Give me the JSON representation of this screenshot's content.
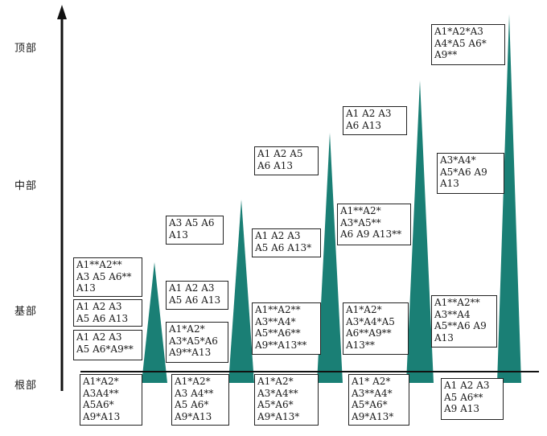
{
  "axis": {
    "levels": [
      "顶部",
      "中部",
      "基部",
      "根部"
    ]
  },
  "colors": {
    "peak": "#1a7f75",
    "axis": "#111111",
    "box_border": "#222222"
  },
  "columns": [
    {
      "boxes": [
        [
          "A1**A2**",
          "A3 A5 A6**",
          "A13"
        ],
        [
          "A1 A2 A3",
          "A5 A6 A13"
        ],
        [
          "A1 A2 A3",
          "A5 A6*A9**"
        ],
        [
          "A1*A2*",
          "A3A4**",
          "A5A6*",
          "A9*A13"
        ]
      ]
    },
    {
      "boxes": [
        [
          "A3 A5 A6",
          "A13"
        ],
        [
          "A1 A2 A3",
          "A5 A6 A13"
        ],
        [
          "A1*A2*",
          "A3*A5*A6",
          "A9**A13"
        ],
        [
          "A1*A2*",
          "A3 A4**",
          "A5 A6*",
          "A9*A13"
        ]
      ]
    },
    {
      "boxes": [
        [
          "A1 A2 A5",
          "A6 A13"
        ],
        [
          "A1 A2 A3",
          "A5 A6 A13*"
        ],
        [
          "A1**A2**",
          "A3**A4*",
          "A5**A6**",
          "A9**A13**"
        ],
        [
          "A1*A2*",
          "A3*A4**",
          "A5*A6*",
          "A9*A13*"
        ]
      ]
    },
    {
      "boxes": [
        [
          "A1 A2 A3",
          "A6 A13"
        ],
        [
          "A1**A2*",
          "A3*A5**",
          "A6 A9 A13**"
        ],
        [
          "A1*A2*",
          "A3*A4*A5",
          "A6**A9**",
          "A13**"
        ],
        [
          "A1* A2*",
          "A3**A4*",
          "A5*A6*",
          "A9*A13*"
        ]
      ]
    },
    {
      "boxes": [
        [
          "A1*A2*A3",
          "A4*A5 A6*",
          "A9**"
        ],
        [
          "A3*A4*",
          "A5*A6 A9",
          "A13"
        ],
        [
          "A1**A2**",
          "A3**A4",
          "A5**A6 A9",
          "A13"
        ],
        [
          "A1 A2 A3",
          "A5 A6**",
          "A9 A13"
        ]
      ]
    }
  ]
}
